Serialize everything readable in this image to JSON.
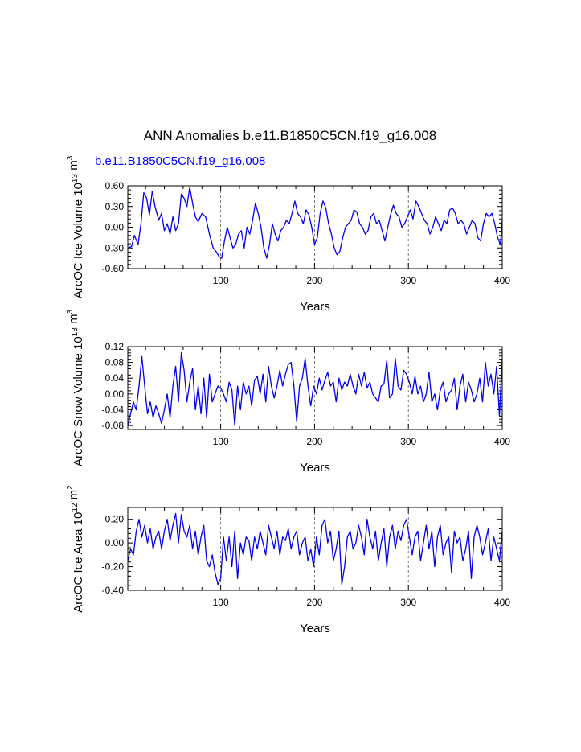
{
  "figure": {
    "title": "ANN Anomalies b.e11.B1850C5CN.f19_g16.008",
    "subtitle": "b.e11.B1850C5CN.f19_g16.008",
    "subtitle_color": "#0000ff",
    "line_color": "#0000ee"
  },
  "chart_data": [
    {
      "type": "line",
      "title": "b.e11.B1850C5CN.f19_g16.008",
      "xlabel": "Years",
      "ylabel": {
        "pre1": "ArcOC Ice Volume 10",
        "sup1": "13",
        "pre2": " m",
        "sup2": "3"
      },
      "xlim": [
        1,
        400
      ],
      "ylim": [
        -0.6,
        0.6
      ],
      "xticks": [
        100,
        200,
        300,
        400
      ],
      "yticks": [
        -0.6,
        -0.3,
        0.0,
        0.3,
        0.6
      ],
      "ytick_labels": [
        "-0.60",
        "-0.30",
        "0.00",
        "0.30",
        "0.60"
      ],
      "ref_lines_x": [
        100,
        200,
        300
      ],
      "series": [
        {
          "name": "ArcOC Ice Volume",
          "x": [
            1,
            5,
            8,
            12,
            15,
            18,
            21,
            24,
            27,
            30,
            34,
            37,
            40,
            43,
            46,
            49,
            52,
            55,
            58,
            61,
            64,
            67,
            70,
            73,
            76,
            80,
            84,
            88,
            92,
            95,
            98,
            101,
            104,
            107,
            110,
            113,
            116,
            119,
            122,
            125,
            128,
            131,
            134,
            137,
            140,
            143,
            146,
            149,
            152,
            155,
            158,
            161,
            164,
            167,
            170,
            173,
            176,
            179,
            182,
            185,
            188,
            191,
            194,
            197,
            200,
            203,
            206,
            209,
            212,
            215,
            218,
            221,
            224,
            227,
            230,
            233,
            236,
            239,
            242,
            245,
            248,
            251,
            254,
            257,
            260,
            263,
            266,
            269,
            272,
            275,
            278,
            281,
            284,
            287,
            290,
            293,
            296,
            299,
            302,
            305,
            308,
            311,
            314,
            317,
            320,
            323,
            326,
            329,
            332,
            335,
            338,
            341,
            344,
            347,
            350,
            353,
            356,
            359,
            362,
            365,
            368,
            371,
            374,
            377,
            380,
            383,
            386,
            389,
            392,
            395,
            398,
            400
          ],
          "values": [
            -0.3,
            -0.28,
            -0.12,
            -0.25,
            0.05,
            0.5,
            0.42,
            0.18,
            0.52,
            0.3,
            0.1,
            0.2,
            -0.05,
            0.05,
            -0.1,
            0.15,
            -0.05,
            0.05,
            0.48,
            0.42,
            0.3,
            0.58,
            0.35,
            0.15,
            0.08,
            0.2,
            0.15,
            -0.1,
            -0.3,
            -0.35,
            -0.42,
            -0.45,
            -0.2,
            0.0,
            -0.15,
            -0.3,
            -0.25,
            -0.1,
            -0.05,
            -0.3,
            0.0,
            -0.1,
            0.1,
            0.35,
            0.2,
            0.0,
            -0.3,
            -0.45,
            -0.25,
            0.05,
            -0.1,
            -0.2,
            -0.05,
            0.0,
            0.1,
            0.05,
            0.2,
            0.38,
            0.2,
            0.15,
            0.05,
            0.25,
            0.18,
            0.0,
            -0.25,
            -0.15,
            0.2,
            0.38,
            0.28,
            0.05,
            -0.1,
            -0.3,
            -0.4,
            -0.35,
            -0.15,
            0.0,
            0.05,
            0.1,
            0.25,
            0.22,
            0.05,
            0.0,
            -0.1,
            -0.05,
            0.15,
            0.2,
            0.05,
            0.1,
            -0.05,
            -0.2,
            0.0,
            0.18,
            0.32,
            0.2,
            0.15,
            0.0,
            0.05,
            0.15,
            0.25,
            0.12,
            0.38,
            0.3,
            0.2,
            0.1,
            0.05,
            -0.1,
            0.0,
            0.15,
            0.05,
            -0.05,
            0.1,
            0.05,
            0.25,
            0.28,
            0.2,
            0.05,
            0.1,
            0.05,
            -0.1,
            0.0,
            0.1,
            0.05,
            -0.15,
            -0.2,
            0.05,
            0.2,
            0.15,
            0.2,
            0.05,
            -0.15,
            -0.25,
            0.1
          ]
        }
      ]
    },
    {
      "type": "line",
      "title": "",
      "xlabel": "Years",
      "ylabel": {
        "pre1": "ArcOC Snow Volume 10",
        "sup1": "13",
        "pre2": " m",
        "sup2": "3"
      },
      "xlim": [
        1,
        400
      ],
      "ylim": [
        -0.09,
        0.12
      ],
      "xticks": [
        100,
        200,
        300,
        400
      ],
      "yticks": [
        -0.08,
        -0.04,
        0.0,
        0.04,
        0.08,
        0.12
      ],
      "ytick_labels": [
        "-0.08",
        "-0.04",
        "0.00",
        "0.04",
        "0.08",
        "0.12"
      ],
      "ref_lines_x": [
        100,
        200,
        300
      ],
      "series": [
        {
          "name": "ArcOC Snow Volume",
          "x": [
            1,
            4,
            7,
            10,
            13,
            16,
            19,
            22,
            25,
            28,
            31,
            34,
            37,
            40,
            43,
            46,
            49,
            52,
            55,
            58,
            61,
            64,
            67,
            70,
            73,
            76,
            79,
            82,
            85,
            88,
            91,
            94,
            97,
            100,
            103,
            106,
            109,
            112,
            115,
            118,
            121,
            124,
            127,
            130,
            133,
            136,
            139,
            142,
            145,
            148,
            151,
            154,
            157,
            160,
            163,
            166,
            169,
            172,
            175,
            178,
            181,
            184,
            187,
            190,
            193,
            196,
            199,
            202,
            205,
            208,
            211,
            214,
            217,
            220,
            223,
            226,
            229,
            232,
            235,
            238,
            241,
            244,
            247,
            250,
            253,
            256,
            259,
            262,
            265,
            268,
            271,
            274,
            277,
            280,
            283,
            286,
            289,
            292,
            295,
            298,
            301,
            304,
            307,
            310,
            313,
            316,
            319,
            322,
            325,
            328,
            331,
            334,
            337,
            340,
            343,
            346,
            349,
            352,
            355,
            358,
            361,
            364,
            367,
            370,
            373,
            376,
            379,
            382,
            385,
            388,
            391,
            394,
            397,
            400
          ],
          "values": [
            -0.08,
            -0.05,
            -0.02,
            -0.04,
            0.02,
            0.095,
            0.02,
            -0.05,
            -0.02,
            -0.06,
            -0.03,
            -0.05,
            -0.075,
            -0.04,
            0.0,
            -0.06,
            0.02,
            0.07,
            -0.02,
            0.105,
            0.06,
            -0.02,
            0.03,
            0.065,
            -0.04,
            0.02,
            -0.05,
            0.04,
            -0.06,
            0.05,
            -0.02,
            0.0,
            0.02,
            0.015,
            0.0,
            -0.02,
            0.03,
            0.01,
            -0.08,
            0.02,
            -0.04,
            0.03,
            0.0,
            0.02,
            -0.03,
            0.035,
            0.045,
            0.0,
            0.05,
            -0.02,
            0.07,
            0.02,
            -0.01,
            0.02,
            0.06,
            0.02,
            0.05,
            0.075,
            0.08,
            0.02,
            -0.07,
            0.02,
            0.04,
            0.09,
            0.02,
            -0.03,
            0.02,
            0.0,
            0.04,
            0.01,
            0.035,
            0.055,
            0.02,
            0.03,
            -0.02,
            0.04,
            0.01,
            0.03,
            0.02,
            0.05,
            0.02,
            0.0,
            0.05,
            0.02,
            0.055,
            0.015,
            0.03,
            0.0,
            -0.01,
            -0.02,
            0.02,
            0.025,
            0.085,
            -0.01,
            0.0,
            0.09,
            0.02,
            0.01,
            0.06,
            0.05,
            0.03,
            0.0,
            0.045,
            0.0,
            0.02,
            -0.02,
            0.0,
            0.055,
            -0.02,
            0.0,
            -0.04,
            0.01,
            0.03,
            -0.02,
            0.0,
            0.01,
            0.04,
            -0.04,
            0.02,
            0.05,
            -0.02,
            0.03,
            0.01,
            -0.02,
            0.0,
            0.04,
            -0.02,
            0.08,
            0.02,
            0.05,
            0.0,
            0.07,
            -0.055,
            0.09
          ]
        }
      ]
    },
    {
      "type": "line",
      "title": "",
      "xlabel": "Years",
      "ylabel": {
        "pre1": "ArcOC Ice Area 10",
        "sup1": "12",
        "pre2": " m",
        "sup2": "2"
      },
      "xlim": [
        1,
        400
      ],
      "ylim": [
        -0.4,
        0.3
      ],
      "xticks": [
        100,
        200,
        300,
        400
      ],
      "yticks": [
        -0.4,
        -0.2,
        0.0,
        0.2
      ],
      "ytick_labels": [
        "-0.40",
        "-0.20",
        "0.00",
        "0.20"
      ],
      "ref_lines_x": [
        100,
        200,
        300
      ],
      "series": [
        {
          "name": "ArcOC Ice Area",
          "x": [
            1,
            4,
            7,
            10,
            13,
            16,
            19,
            22,
            25,
            28,
            31,
            34,
            37,
            40,
            43,
            46,
            49,
            52,
            55,
            58,
            61,
            64,
            67,
            70,
            73,
            76,
            79,
            82,
            85,
            88,
            91,
            94,
            97,
            100,
            103,
            106,
            109,
            112,
            115,
            118,
            121,
            124,
            127,
            130,
            133,
            136,
            139,
            142,
            145,
            148,
            151,
            154,
            157,
            160,
            163,
            166,
            169,
            172,
            175,
            178,
            181,
            184,
            187,
            190,
            193,
            196,
            199,
            202,
            205,
            208,
            211,
            214,
            217,
            220,
            223,
            226,
            229,
            232,
            235,
            238,
            241,
            244,
            247,
            250,
            253,
            256,
            259,
            262,
            265,
            268,
            271,
            274,
            277,
            280,
            283,
            286,
            289,
            292,
            295,
            298,
            301,
            304,
            307,
            310,
            313,
            316,
            319,
            322,
            325,
            328,
            331,
            334,
            337,
            340,
            343,
            346,
            349,
            352,
            355,
            358,
            361,
            364,
            367,
            370,
            373,
            376,
            379,
            382,
            385,
            388,
            391,
            394,
            397,
            400
          ],
          "values": [
            -0.15,
            -0.05,
            -0.1,
            0.1,
            0.2,
            0.05,
            0.15,
            0.0,
            0.12,
            -0.05,
            0.05,
            0.1,
            -0.05,
            0.1,
            0.2,
            0.02,
            0.15,
            0.25,
            0.0,
            0.24,
            0.1,
            0.05,
            0.15,
            -0.05,
            0.1,
            -0.1,
            0.05,
            0.15,
            -0.15,
            -0.2,
            -0.1,
            -0.25,
            -0.35,
            -0.3,
            0.05,
            -0.15,
            0.05,
            -0.2,
            0.1,
            -0.3,
            0.0,
            -0.1,
            0.05,
            0.02,
            -0.15,
            0.05,
            -0.05,
            0.1,
            0.0,
            -0.1,
            0.15,
            0.05,
            -0.05,
            0.1,
            -0.1,
            0.05,
            0.02,
            0.12,
            -0.05,
            0.05,
            0.1,
            -0.1,
            0.0,
            0.05,
            -0.15,
            -0.05,
            -0.2,
            0.05,
            -0.1,
            0.15,
            0.2,
            0.0,
            0.1,
            -0.15,
            -0.05,
            0.1,
            -0.35,
            -0.2,
            0.05,
            0.1,
            -0.05,
            0.0,
            0.15,
            0.05,
            -0.1,
            0.2,
            0.05,
            -0.05,
            0.1,
            -0.15,
            0.0,
            0.12,
            -0.2,
            0.05,
            0.15,
            -0.05,
            0.1,
            0.02,
            0.15,
            0.2,
            0.05,
            -0.1,
            0.05,
            0.1,
            -0.15,
            0.0,
            0.15,
            -0.05,
            0.1,
            -0.2,
            0.05,
            0.15,
            -0.1,
            0.0,
            0.05,
            -0.25,
            0.1,
            0.0,
            0.05,
            -0.15,
            -0.05,
            0.1,
            -0.3,
            0.05,
            0.15,
            0.05,
            -0.1,
            0.0,
            0.12,
            -0.15,
            0.05,
            -0.05,
            -0.15,
            0.1
          ]
        }
      ]
    }
  ]
}
